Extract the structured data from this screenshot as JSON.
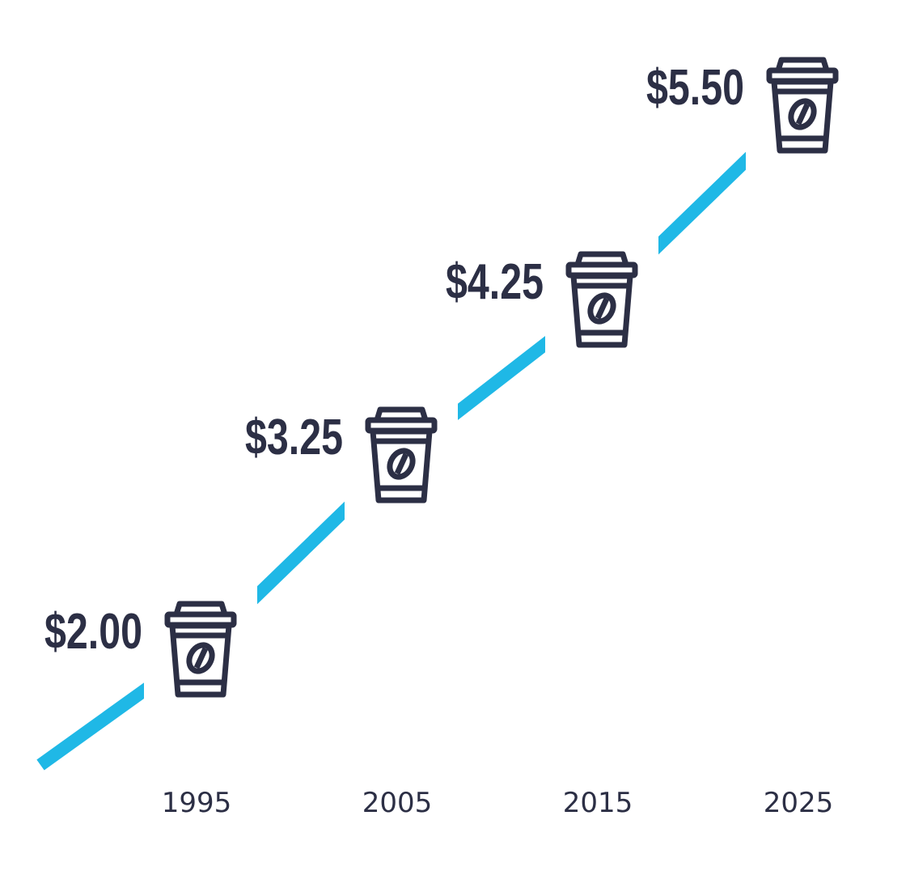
{
  "chart_data": {
    "type": "line",
    "x": [
      1995,
      2005,
      2015,
      2025
    ],
    "series": [
      {
        "color": "#1fb8e6",
        "values": [
          2,
          3.25,
          4.25,
          5.5
        ],
        "value_labels": [
          "$2.00",
          "$3.25",
          "$4.25",
          "$5.50"
        ]
      }
    ]
  }
}
